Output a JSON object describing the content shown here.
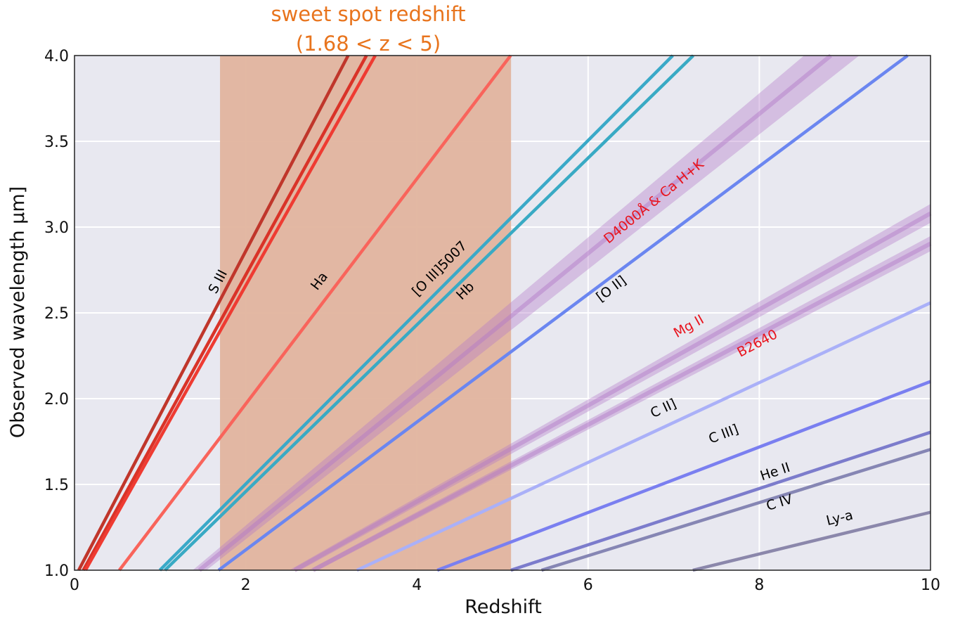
{
  "chart_data": {
    "type": "line",
    "title": "sweet spot redshift",
    "subtitle": "(1.68 < z < 5)",
    "xlabel": "Redshift",
    "ylabel": "Observed wavelength μm]",
    "xlim": [
      0,
      10
    ],
    "ylim": [
      1.0,
      4.0
    ],
    "grid": true,
    "x_ticks": [
      "0",
      "2",
      "4",
      "6",
      "8",
      "10"
    ],
    "y_ticks": [
      "1.0",
      "1.5",
      "2.0",
      "2.5",
      "3.0",
      "3.5",
      "4.0"
    ],
    "shaded_region": {
      "x_start": 1.7,
      "x_end": 5.1,
      "color": "#e2b49e"
    },
    "bands": [
      {
        "label": "D4000Å & Ca H+K",
        "rest_um_low": 0.3934,
        "rest_um_high": 0.42,
        "color": "#b278c8",
        "label_color": "#e8141e",
        "label_x": 6.8,
        "label_y": 3.13
      },
      {
        "label": "Mg II",
        "rest_um_low": 0.275,
        "rest_um_high": 0.285,
        "color": "#b278c8",
        "label_color": "#e8141e",
        "label_x": 7.2,
        "label_y": 2.4
      },
      {
        "label": "B2640",
        "rest_um_low": 0.26,
        "rest_um_high": 0.268,
        "color": "#b278c8",
        "label_color": "#e8141e",
        "label_x": 8.0,
        "label_y": 2.3
      }
    ],
    "series": [
      {
        "label": "S III",
        "rest_um": 0.9532,
        "color": "#c0362b",
        "label_color": "#000000",
        "label_x": 1.72,
        "label_y": 2.67
      },
      {
        "label": "",
        "rest_um": 0.9069,
        "color": "#d93328",
        "label_color": "#000000"
      },
      {
        "label": "",
        "rest_um": 0.8863,
        "color": "#ef3b32",
        "label_color": "#000000"
      },
      {
        "label": "Ha",
        "rest_um": 0.6563,
        "color": "#f9645b",
        "label_color": "#000000",
        "label_x": 2.9,
        "label_y": 2.67
      },
      {
        "label": "[O III]5007",
        "rest_um": 0.5007,
        "color": "#3aa9c8",
        "label_color": "#000000",
        "label_x": 4.3,
        "label_y": 2.74
      },
      {
        "label": "Hb",
        "rest_um": 0.4861,
        "color": "#39aac4",
        "label_color": "#000000",
        "label_x": 4.6,
        "label_y": 2.61
      },
      {
        "label": "[O II]",
        "rest_um": 0.3727,
        "color": "#6b86f0",
        "label_color": "#000000",
        "label_x": 6.3,
        "label_y": 2.62
      },
      {
        "label": "C II]",
        "rest_um": 0.2326,
        "color": "#aab0f8",
        "label_color": "#000000",
        "label_x": 6.9,
        "label_y": 1.92
      },
      {
        "label": "C III]",
        "rest_um": 0.1909,
        "color": "#7a7ff0",
        "label_color": "#000000",
        "label_x": 7.6,
        "label_y": 1.77
      },
      {
        "label": "He II",
        "rest_um": 0.164,
        "color": "#7c7ccc",
        "label_color": "#000000",
        "label_x": 8.2,
        "label_y": 1.55
      },
      {
        "label": "C IV",
        "rest_um": 0.1549,
        "color": "#8686b4",
        "label_color": "#000000",
        "label_x": 8.25,
        "label_y": 1.37
      },
      {
        "label": "Ly-a",
        "rest_um": 0.1216,
        "color": "#8b87ab",
        "label_color": "#000000",
        "label_x": 8.95,
        "label_y": 1.28
      }
    ]
  }
}
